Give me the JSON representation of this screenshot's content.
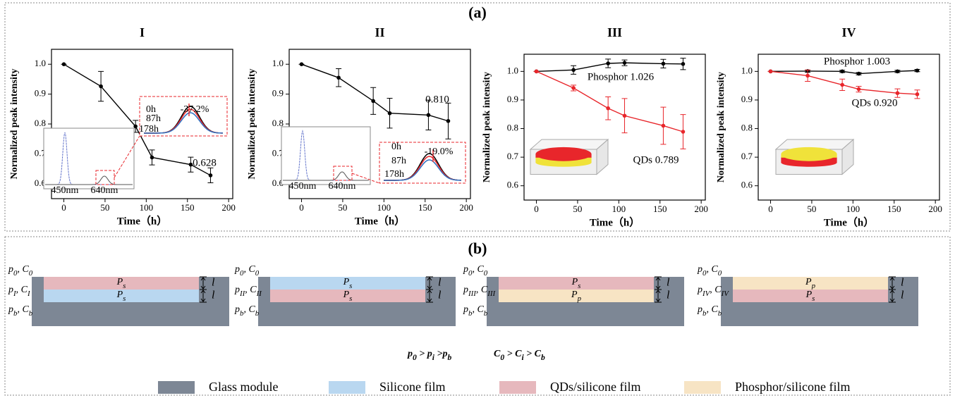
{
  "panel_a": {
    "label": "(a)"
  },
  "chart_data": [
    {
      "type": "line",
      "title": "I",
      "xlabel": "Time（h）",
      "ylabel": "Normalized peak intensity",
      "x": [
        0,
        45,
        87,
        107,
        154,
        178
      ],
      "xlim": [
        -15,
        205
      ],
      "xticks": [
        0,
        50,
        100,
        150,
        200
      ],
      "ylim": [
        0.55,
        1.05
      ],
      "yticks": [
        0.6,
        0.7,
        0.8,
        0.9,
        {
          "value": 1.0,
          "label": "1.0"
        }
      ],
      "series": [
        {
          "color": "#000000",
          "values": [
            1.0,
            0.926,
            0.792,
            0.688,
            0.664,
            0.628
          ],
          "errors": [
            0,
            0.05,
            0.02,
            0.025,
            0.025,
            0.025
          ]
        }
      ],
      "annotations": [
        {
          "text": "0.628",
          "color": "#e8262b"
        }
      ],
      "inset": {
        "peak_labels": [
          "450nm",
          "640nm"
        ],
        "time_labels": [
          "0h",
          "87h",
          "178h"
        ],
        "change": "-37.2%"
      }
    },
    {
      "type": "line",
      "title": "II",
      "xlabel": "Time（h）",
      "ylabel": "Normalized peak intensity",
      "x": [
        0,
        45,
        87,
        107,
        154,
        178
      ],
      "xlim": [
        -15,
        205
      ],
      "xticks": [
        0,
        50,
        100,
        150,
        200
      ],
      "ylim": [
        0.55,
        1.05
      ],
      "yticks": [
        0.6,
        0.7,
        0.8,
        0.9,
        {
          "value": 1.0,
          "label": "1.0"
        }
      ],
      "series": [
        {
          "color": "#000000",
          "values": [
            1.0,
            0.955,
            0.877,
            0.836,
            0.83,
            0.81
          ],
          "errors": [
            0,
            0.03,
            0.045,
            0.05,
            0.05,
            0.06
          ]
        }
      ],
      "annotations": [
        {
          "text": "0.810",
          "color": "#e8262b"
        }
      ],
      "inset": {
        "peak_labels": [
          "450nm",
          "640nm"
        ],
        "time_labels": [
          "0h",
          "87h",
          "178h"
        ],
        "change": "-19.0%"
      }
    },
    {
      "type": "line",
      "title": "III",
      "xlabel": "Time（h）",
      "ylabel": "Normalized peak intensity",
      "x": [
        0,
        45,
        87,
        107,
        154,
        178
      ],
      "xlim": [
        -15,
        205
      ],
      "xticks": [
        0,
        50,
        100,
        150,
        200
      ],
      "ylim": [
        0.55,
        1.06
      ],
      "yticks": [
        0.6,
        0.7,
        0.8,
        0.9,
        {
          "value": 1.0,
          "label": "1.0"
        }
      ],
      "series": [
        {
          "color": "#000000",
          "values": [
            1.0,
            1.005,
            1.028,
            1.03,
            1.027,
            1.026
          ],
          "errors": [
            0,
            0.015,
            0.015,
            0.01,
            0.015,
            0.02
          ]
        },
        {
          "color": "#e8262b",
          "values": [
            1.0,
            0.942,
            0.871,
            0.845,
            0.81,
            0.789
          ],
          "errors": [
            0,
            0.01,
            0.04,
            0.06,
            0.065,
            0.06
          ]
        }
      ],
      "annotations": [
        {
          "text": "Phosphor 1.026",
          "color": "#000000"
        },
        {
          "text": "QDs 0.789",
          "color": "#e8262b"
        }
      ]
    },
    {
      "type": "line",
      "title": "IV",
      "xlabel": "Time（h）",
      "ylabel": "Normalized peak intensity",
      "x": [
        0,
        45,
        87,
        107,
        154,
        178
      ],
      "xlim": [
        -15,
        205
      ],
      "xticks": [
        0,
        50,
        100,
        150,
        200
      ],
      "ylim": [
        0.55,
        1.06
      ],
      "yticks": [
        0.6,
        0.7,
        0.8,
        0.9,
        {
          "value": 1.0,
          "label": "1.0"
        }
      ],
      "series": [
        {
          "color": "#000000",
          "values": [
            1.0,
            1.001,
            1.0,
            0.992,
            1.0,
            1.003
          ],
          "errors": [
            0,
            0.004,
            0.004,
            0.004,
            0.004,
            0.004
          ]
        },
        {
          "color": "#e8262b",
          "values": [
            1.0,
            0.985,
            0.953,
            0.938,
            0.924,
            0.92
          ],
          "errors": [
            0,
            0.02,
            0.02,
            0.01,
            0.015,
            0.015
          ]
        }
      ],
      "annotations": [
        {
          "text": "Phosphor 1.003",
          "color": "#000000"
        },
        {
          "text": "QDs 0.920",
          "color": "#e8262b"
        }
      ]
    }
  ],
  "panel_b": {
    "label": "(b)",
    "diagrams": [
      {
        "top": [
          "p",
          "0",
          ", C",
          "0"
        ],
        "mid": [
          "p",
          "I",
          ", C",
          "I"
        ],
        "bottom": [
          "p",
          "b",
          ", C",
          "b"
        ],
        "layers": [
          {
            "text": [
              "P",
              "s"
            ],
            "color": "#e6b8bd"
          },
          {
            "text": [
              "P",
              "s"
            ],
            "color": "#b9d7f0"
          }
        ],
        "thickness": [
          "l",
          "l"
        ]
      },
      {
        "top": [
          "p",
          "0",
          ", C",
          "0"
        ],
        "mid": [
          "p",
          "II",
          ", C",
          "II"
        ],
        "bottom": [
          "p",
          "b",
          ", C",
          "b"
        ],
        "layers": [
          {
            "text": [
              "P",
              "s"
            ],
            "color": "#b9d7f0"
          },
          {
            "text": [
              "P",
              "s"
            ],
            "color": "#e6b8bd"
          }
        ],
        "thickness": [
          "l",
          "l"
        ]
      },
      {
        "top": [
          "p",
          "0",
          ", C",
          "0"
        ],
        "mid": [
          "p",
          "III",
          ", C",
          "III"
        ],
        "bottom": [
          "p",
          "b",
          ", C",
          "b"
        ],
        "layers": [
          {
            "text": [
              "P",
              "s"
            ],
            "color": "#e6b8bd"
          },
          {
            "text": [
              "P",
              "p"
            ],
            "color": "#f7e4c4"
          }
        ],
        "thickness": [
          "l",
          "l"
        ]
      },
      {
        "top": [
          "p",
          "0",
          ", C",
          "0"
        ],
        "mid": [
          "p",
          "IV",
          ", C",
          "IV"
        ],
        "bottom": [
          "p",
          "b",
          ", C",
          "b"
        ],
        "layers": [
          {
            "text": [
              "P",
              "p"
            ],
            "color": "#f7e4c4"
          },
          {
            "text": [
              "P",
              "s"
            ],
            "color": "#e6b8bd"
          }
        ],
        "thickness": [
          "l",
          "l"
        ]
      }
    ],
    "equation": [
      [
        "p",
        "0",
        " > p",
        "i",
        " >p",
        "b"
      ],
      [
        "C",
        "0",
        " > C",
        "i",
        " > C",
        "b"
      ]
    ],
    "legend": [
      {
        "label": "Glass module",
        "color": "#7d8795"
      },
      {
        "label": "Silicone film",
        "color": "#b9d7f0"
      },
      {
        "label": "QDs/silicone film",
        "color": "#e6b8bd"
      },
      {
        "label": "Phosphor/silicone film",
        "color": "#f7e4c4"
      }
    ]
  }
}
